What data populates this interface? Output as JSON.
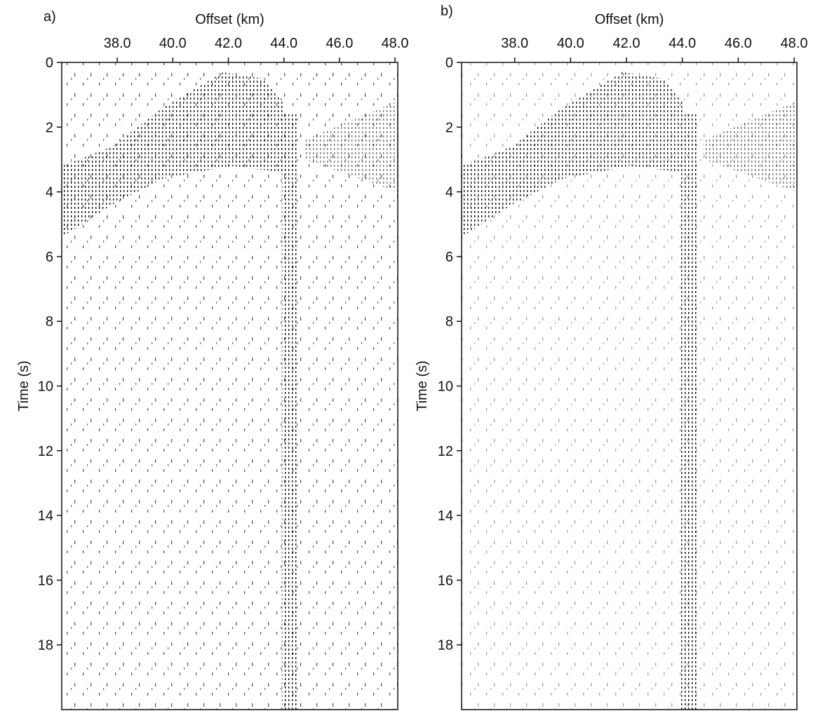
{
  "chart_data": [
    {
      "type": "seismic",
      "panel_label": "a)",
      "xlabel": "Offset (km)",
      "ylabel": "Time (s)",
      "xlim": [
        36.0,
        48.1
      ],
      "ylim": [
        0,
        20
      ],
      "y_inverted": true,
      "x_axis_position": "top",
      "xticks": [
        {
          "value": 38,
          "label": "38.0"
        },
        {
          "value": 40,
          "label": "40.0"
        },
        {
          "value": 42,
          "label": "42.0"
        },
        {
          "value": 44,
          "label": "44.0"
        },
        {
          "value": 46,
          "label": "46.0"
        },
        {
          "value": 48,
          "label": "48.0"
        }
      ],
      "yticks": [
        0,
        2,
        4,
        6,
        8,
        10,
        12,
        14,
        16,
        18
      ]
    },
    {
      "type": "seismic",
      "panel_label": "b)",
      "xlabel": "Offset (km)",
      "ylabel": "Time (s)",
      "xlim": [
        36.1,
        48.1
      ],
      "ylim": [
        0,
        20
      ],
      "y_inverted": true,
      "x_axis_position": "top",
      "xticks": [
        {
          "value": 38,
          "label": "38.0"
        },
        {
          "value": 40,
          "label": "40.0"
        },
        {
          "value": 42,
          "label": "42.0"
        },
        {
          "value": 44,
          "label": "44.0"
        },
        {
          "value": 46,
          "label": "46.0"
        },
        {
          "value": 48,
          "label": "48.0"
        }
      ],
      "yticks": [
        0,
        2,
        4,
        6,
        8,
        10,
        12,
        14,
        16,
        18
      ]
    }
  ]
}
